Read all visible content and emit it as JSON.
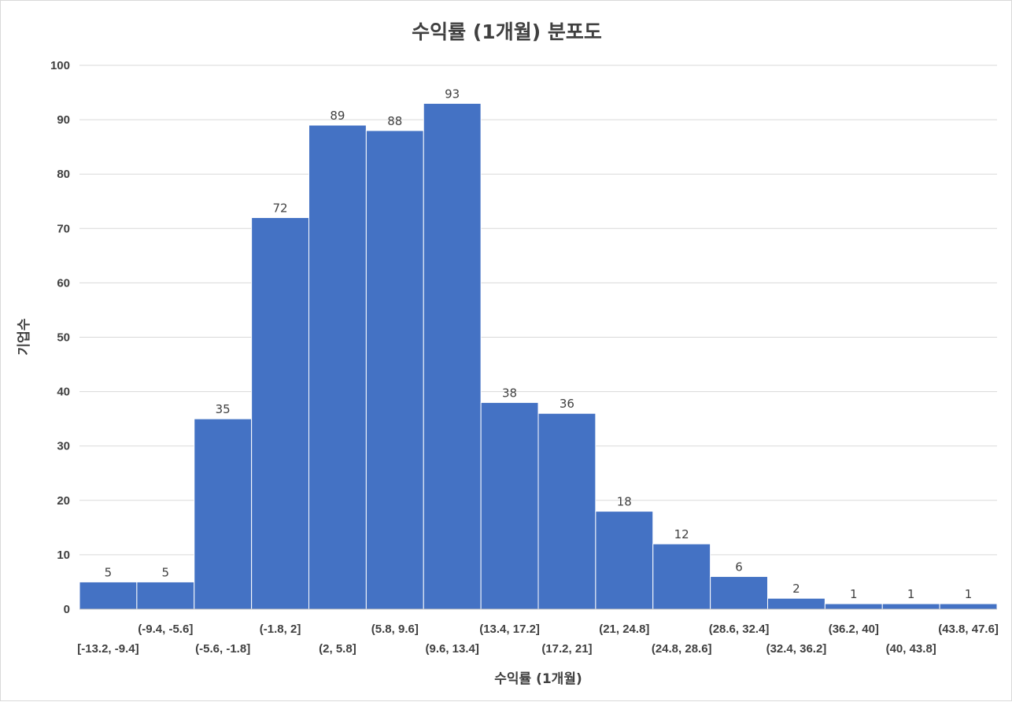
{
  "chart_data": {
    "type": "bar",
    "title": "수익률 (1개월) 분포도",
    "xlabel": "수익률 (1개월)",
    "ylabel": "기업수",
    "categories": [
      "[-13.2, -9.4]",
      "(-9.4, -5.6]",
      "(-5.6, -1.8]",
      "(-1.8, 2]",
      "(2, 5.8]",
      "(5.8, 9.6]",
      "(9.6, 13.4]",
      "(13.4, 17.2]",
      "(17.2, 21]",
      "(21, 24.8]",
      "(24.8, 28.6]",
      "(28.6, 32.4]",
      "(32.4, 36.2]",
      "(36.2, 40]",
      "(40, 43.8]",
      "(43.8, 47.6]"
    ],
    "values": [
      5,
      5,
      35,
      72,
      89,
      88,
      93,
      38,
      36,
      18,
      12,
      6,
      2,
      1,
      1,
      1
    ],
    "ylim": [
      0,
      100
    ],
    "yticks": [
      "0",
      "10",
      "20",
      "30",
      "40",
      "50",
      "60",
      "70",
      "80",
      "90",
      "100"
    ],
    "grid": true,
    "legend": "none",
    "data_labels": true,
    "bar_color": "#4472C4",
    "gridline_color": "#D9D9D9",
    "text_color": "#404040"
  }
}
